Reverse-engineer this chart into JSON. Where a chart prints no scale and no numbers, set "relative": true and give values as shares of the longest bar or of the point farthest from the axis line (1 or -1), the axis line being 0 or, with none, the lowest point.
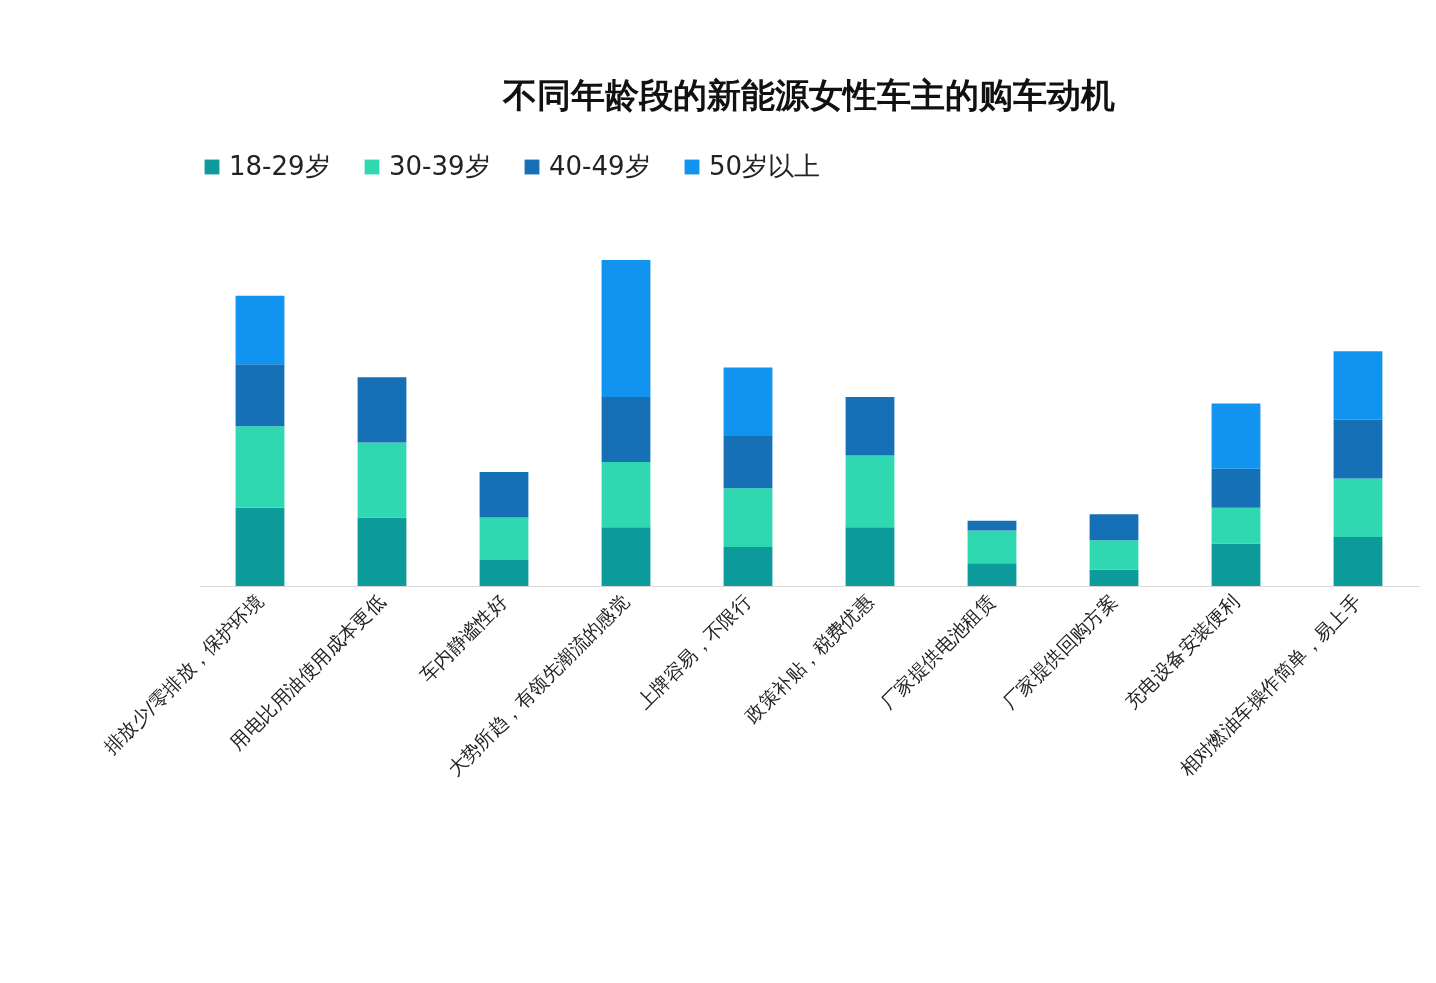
{
  "chart_data": {
    "type": "bar",
    "title": "不同年龄段的新能源女性车主的购车动机",
    "stacked": true,
    "relative": true,
    "legend": "top",
    "categories": [
      "排放少/零排放，保护环境",
      "用电比用油使用成本更低",
      "车内静谧性好",
      "大势所趋，有领先潮流的感觉",
      "上牌容易，不限行",
      "政策补贴，税费优惠",
      "厂家提供电池租赁",
      "厂家提供回购方案",
      "充电设备安装便利",
      "相对燃油车操作简单，易上手"
    ],
    "series": [
      {
        "name": "18-29岁",
        "color": "#0c9a9b",
        "values": [
          0.24,
          0.21,
          0.08,
          0.18,
          0.12,
          0.18,
          0.07,
          0.05,
          0.13,
          0.15
        ]
      },
      {
        "name": "30-39岁",
        "color": "#2fd8b0",
        "values": [
          0.25,
          0.23,
          0.13,
          0.2,
          0.18,
          0.22,
          0.1,
          0.09,
          0.11,
          0.18
        ]
      },
      {
        "name": "40-49岁",
        "color": "#1570b6",
        "values": [
          0.19,
          0.2,
          0.14,
          0.2,
          0.16,
          0.18,
          0.03,
          0.08,
          0.12,
          0.18
        ]
      },
      {
        "name": "50岁以上",
        "color": "#1193f0",
        "values": [
          0.21,
          null,
          null,
          0.42,
          0.21,
          null,
          null,
          null,
          0.2,
          0.21
        ]
      }
    ]
  }
}
